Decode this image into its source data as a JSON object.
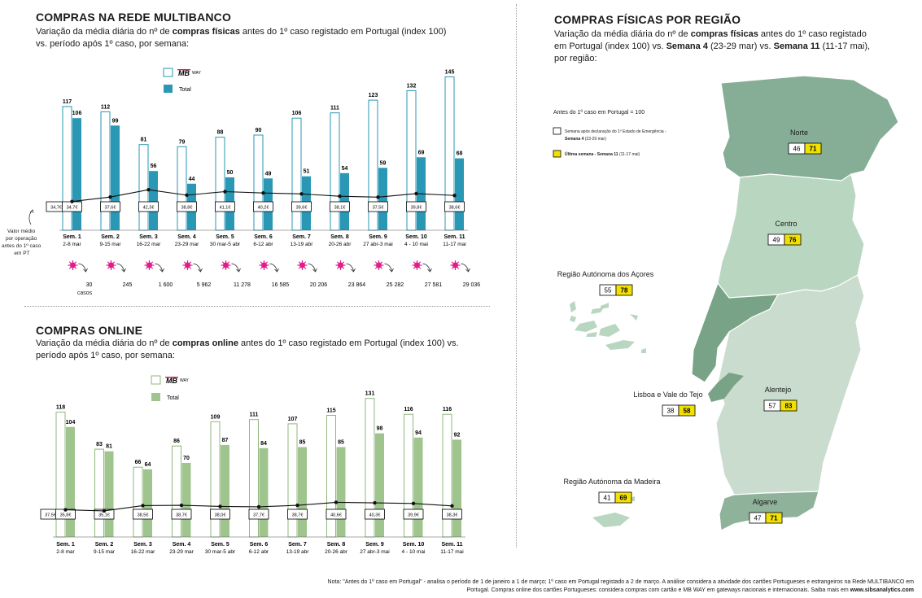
{
  "multibanco": {
    "title": "COMPRAS NA REDE MULTIBANCO",
    "sub_pre": "Variação da média diária do nº de ",
    "sub_bold": "compras físicas",
    "sub_post": " antes do 1º caso registado em Portugal (index 100) vs. período após 1º caso, por semana:",
    "legend_mbway_logo": "MB",
    "legend_mbway_word": "WAY",
    "legend_total": "Total",
    "side_label": [
      "Valor médio",
      "por operação",
      "antes do 1º caso",
      "em PT"
    ],
    "cases_label": "casos"
  },
  "online": {
    "title": "COMPRAS ONLINE",
    "sub_pre": "Variação da média diária do nº de ",
    "sub_bold": "compras online",
    "sub_post": " antes do 1º caso registado em Portugal (index 100) vs. período após 1º caso, por semana:",
    "legend_mbway_logo": "MB",
    "legend_mbway_word": "WAY",
    "legend_total": "Total"
  },
  "region": {
    "title": "COMPRAS FÍSICAS POR REGIÃO",
    "sub_a": "Variação da média diária do nº de ",
    "sub_b": "compras físicas",
    "sub_c": " antes do 1º caso registado em Portugal (index 100) vs. ",
    "sub_d": "Semana 4",
    "sub_e": " (23-29 mar) vs. ",
    "sub_f": "Semana 11",
    "sub_g": " (11-17 mai), por região:",
    "legend_title": "Antes do 1º caso em Portugal = 100",
    "legend_w4_a": "Semana após declaração do 1º Estado de Emergência -",
    "legend_w4_b": "Semana 4",
    "legend_w4_c": " (23-29 mar)",
    "legend_w11_b": "Última semana - Semana 11",
    "legend_w11_c": " (11-17 mai)"
  },
  "note": {
    "text1": "Nota: \"Antes do 1º caso em Portugal\" - analisa o período de 1 de janeiro a 1 de março; 1º caso em Portugal registado a 2 de março. A análise considera a atividade dos cartões Portugueses e estrangeiros na Rede MULTIBANCO em",
    "text2": "Portugal. Compras online dos cartões Portugueses: considera compras com cartão e MB WAY em gateways nacionais e internacionais. Saiba mais em ",
    "link": "www.sibsanalytics.com"
  },
  "colors": {
    "mb_total": "#2a97b4",
    "mb_outline": "#2a97b4",
    "on_total": "#9fc48e",
    "on_outline": "#8fb77c",
    "yellow": "#f2e100",
    "map_north": "#86ad95",
    "map_centro": "#b9d6c1",
    "map_alentejo": "#c9dccd",
    "map_algarve": "#8fb29a",
    "map_lisboa": "#79a386",
    "red": "#d0175b",
    "magenta": "#e01d8a"
  },
  "chart_data": [
    {
      "id": "multibanco",
      "type": "bar",
      "title": "COMPRAS NA REDE MULTIBANCO",
      "categories": [
        "Sem. 1",
        "Sem. 2",
        "Sem. 3",
        "Sem. 4",
        "Sem. 5",
        "Sem. 6",
        "Sem. 7",
        "Sem. 8",
        "Sem. 9",
        "Sem. 10",
        "Sem. 11"
      ],
      "dates": [
        "2-8 mar",
        "9-15 mar",
        "16-22 mar",
        "23-29 mar",
        "30 mar-5 abr",
        "6-12 abr",
        "13-19 abr",
        "20-26 abr",
        "27 abr-3 mai",
        "4 - 10 mai",
        "11-17 mai"
      ],
      "series": [
        {
          "name": "MB WAY",
          "values": [
            117,
            112,
            81,
            79,
            88,
            90,
            106,
            111,
            123,
            132,
            145
          ]
        },
        {
          "name": "Total",
          "values": [
            106,
            99,
            56,
            44,
            50,
            49,
            51,
            54,
            59,
            69,
            68
          ]
        }
      ],
      "avg_ticket_label": "Valor médio por operação",
      "avg_ticket_baseline": "34,7€",
      "avg_ticket": [
        34.7,
        37.6,
        42.3,
        38.8,
        41.1,
        40.2,
        39.6,
        38.1,
        37.5,
        39.8,
        38.6
      ],
      "avg_ticket_labels": [
        "34,7€",
        "37,6€",
        "42,3€",
        "38,8€",
        "41,1€",
        "40,2€",
        "39,6€",
        "38,1€",
        "37,5€",
        "39,8€",
        "38,6€"
      ],
      "covid_cases": [
        "30",
        "245",
        "1 600",
        "5 962",
        "11 278",
        "16 585",
        "20 206",
        "23 864",
        "25 282",
        "27 581",
        "29 036"
      ],
      "ylim": [
        0,
        150
      ]
    },
    {
      "id": "online",
      "type": "bar",
      "title": "COMPRAS ONLINE",
      "categories": [
        "Sem. 1",
        "Sem. 2",
        "Sem. 3",
        "Sem. 4",
        "Sem. 5",
        "Sem. 6",
        "Sem. 7",
        "Sem. 8",
        "Sem. 9",
        "Sem. 10",
        "Sem. 11"
      ],
      "dates": [
        "2-8 mar",
        "9-15 mar",
        "16-22 mar",
        "23-29 mar",
        "30 mar-5 abr",
        "6-12 abr",
        "13-19 abr",
        "20-26 abr",
        "27 abr-3 mai",
        "4 - 10 mai",
        "11-17 mai"
      ],
      "series": [
        {
          "name": "MB WAY",
          "values": [
            118,
            83,
            66,
            86,
            109,
            111,
            107,
            115,
            131,
            116,
            116
          ]
        },
        {
          "name": "Total",
          "values": [
            104,
            81,
            64,
            70,
            87,
            84,
            85,
            85,
            98,
            94,
            92
          ]
        }
      ],
      "avg_ticket_baseline": "37,5€",
      "avg_ticket": [
        35.8,
        35.1,
        38.5,
        38.7,
        38.0,
        37.7,
        38.7,
        40.6,
        40.3,
        39.9,
        38.3
      ],
      "avg_ticket_labels": [
        "35,8€",
        "35,1€",
        "38,5€",
        "38,7€",
        "38,0€",
        "37,7€",
        "38,7€",
        "40,6€",
        "40,3€",
        "39,9€",
        "38,3€"
      ],
      "ylim": [
        0,
        150
      ]
    },
    {
      "id": "regions",
      "type": "table",
      "title": "COMPRAS FÍSICAS POR REGIÃO",
      "columns": [
        "Semana 4",
        "Semana 11"
      ],
      "regions": [
        {
          "name": "Norte",
          "w4": 46,
          "w11": 71
        },
        {
          "name": "Centro",
          "w4": 49,
          "w11": 76
        },
        {
          "name": "Região Autónoma dos Açores",
          "w4": 55,
          "w11": 78
        },
        {
          "name": "Lisboa e Vale do Tejo",
          "w4": 38,
          "w11": 58
        },
        {
          "name": "Alentejo",
          "w4": 57,
          "w11": 83
        },
        {
          "name": "Região Autónoma da Madeira",
          "w4": 41,
          "w11": 69
        },
        {
          "name": "Algarve",
          "w4": 47,
          "w11": 71
        }
      ]
    }
  ]
}
